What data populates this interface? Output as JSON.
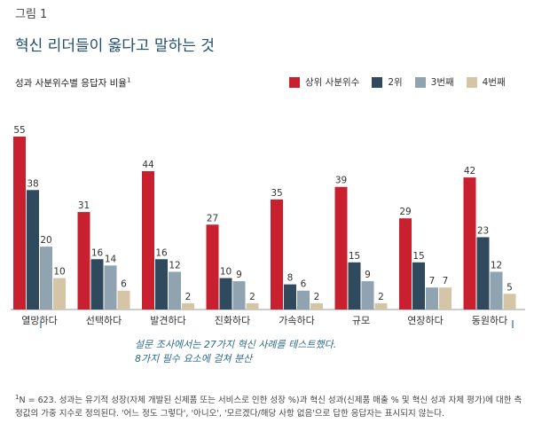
{
  "figure": {
    "label": "그림 1",
    "title": "혁신 리더들이 옳다고 말하는 것",
    "subtitle": "성과 사분위수별 응답자 비율",
    "subtitle_sup": "1"
  },
  "colors": {
    "s1": "#c8202f",
    "s2": "#2f4a5c",
    "s3": "#8fa3b0",
    "s4": "#d4c5a6",
    "bracket": "#2e6b8d"
  },
  "note": {
    "line1": "설문 조사에서는 27가지 혁신 사례를 테스트했다.",
    "line2": "8가지 필수 요소에 걸쳐 분산"
  },
  "footnote": {
    "sup": "1",
    "text": "N = 623. 성과는 유기적 성장(자체 개발된 신제품 또는 서비스로 인한 성장 %)과 혁신 성과(신제품 매출 % 및 혁신 성과 자체 평가)에 대한 측정값의 가중 지수로 정의된다. '어느 정도 그렇다', '아니오', '모르겠다/해당 사항 없음'으로 답한 응답자는 표시되지 않는다."
  },
  "chart_data": {
    "type": "bar",
    "title": "혁신 리더들이 옳다고 말하는 것",
    "subtitle": "성과 사분위수별 응답자 비율",
    "xlabel": "",
    "ylabel": "",
    "ylim": [
      0,
      55
    ],
    "legend_position": "top-right",
    "categories": [
      "열망하다",
      "선택하다",
      "발견하다",
      "진화하다",
      "가속하다",
      "규모",
      "연장하다",
      "동원하다"
    ],
    "series": [
      {
        "name": "상위 사분위수",
        "values": [
          55,
          31,
          44,
          27,
          35,
          39,
          29,
          42
        ]
      },
      {
        "name": "2위",
        "values": [
          38,
          16,
          16,
          10,
          8,
          15,
          15,
          23
        ]
      },
      {
        "name": "3번째",
        "values": [
          20,
          14,
          12,
          9,
          6,
          9,
          7,
          12
        ]
      },
      {
        "name": "4번째",
        "values": [
          10,
          6,
          2,
          2,
          2,
          2,
          7,
          5
        ]
      }
    ]
  }
}
